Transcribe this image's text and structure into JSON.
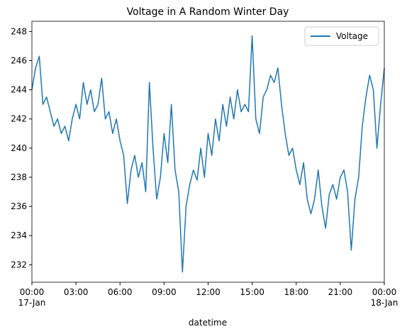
{
  "chart_data": {
    "type": "line",
    "title": "Voltage in A Random Winter Day",
    "xlabel": "datetime",
    "x": [
      "17-Jan 00:00",
      "17-Jan 00:15",
      "17-Jan 00:30",
      "17-Jan 00:45",
      "17-Jan 01:00",
      "17-Jan 01:15",
      "17-Jan 01:30",
      "17-Jan 01:45",
      "17-Jan 02:00",
      "17-Jan 02:15",
      "17-Jan 02:30",
      "17-Jan 02:45",
      "17-Jan 03:00",
      "17-Jan 03:15",
      "17-Jan 03:30",
      "17-Jan 03:45",
      "17-Jan 04:00",
      "17-Jan 04:15",
      "17-Jan 04:30",
      "17-Jan 04:45",
      "17-Jan 05:00",
      "17-Jan 05:15",
      "17-Jan 05:30",
      "17-Jan 05:45",
      "17-Jan 06:00",
      "17-Jan 06:15",
      "17-Jan 06:30",
      "17-Jan 06:45",
      "17-Jan 07:00",
      "17-Jan 07:15",
      "17-Jan 07:30",
      "17-Jan 07:45",
      "17-Jan 08:00",
      "17-Jan 08:15",
      "17-Jan 08:30",
      "17-Jan 08:45",
      "17-Jan 09:00",
      "17-Jan 09:15",
      "17-Jan 09:30",
      "17-Jan 09:45",
      "17-Jan 10:00",
      "17-Jan 10:15",
      "17-Jan 10:30",
      "17-Jan 10:45",
      "17-Jan 11:00",
      "17-Jan 11:15",
      "17-Jan 11:30",
      "17-Jan 11:45",
      "17-Jan 12:00",
      "17-Jan 12:15",
      "17-Jan 12:30",
      "17-Jan 12:45",
      "17-Jan 13:00",
      "17-Jan 13:15",
      "17-Jan 13:30",
      "17-Jan 13:45",
      "17-Jan 14:00",
      "17-Jan 14:15",
      "17-Jan 14:30",
      "17-Jan 14:45",
      "17-Jan 15:00",
      "17-Jan 15:15",
      "17-Jan 15:30",
      "17-Jan 15:45",
      "17-Jan 16:00",
      "17-Jan 16:15",
      "17-Jan 16:30",
      "17-Jan 16:45",
      "17-Jan 17:00",
      "17-Jan 17:15",
      "17-Jan 17:30",
      "17-Jan 17:45",
      "17-Jan 18:00",
      "17-Jan 18:15",
      "17-Jan 18:30",
      "17-Jan 18:45",
      "17-Jan 19:00",
      "17-Jan 19:15",
      "17-Jan 19:30",
      "17-Jan 19:45",
      "17-Jan 20:00",
      "17-Jan 20:15",
      "17-Jan 20:30",
      "17-Jan 20:45",
      "17-Jan 21:00",
      "17-Jan 21:15",
      "17-Jan 21:30",
      "17-Jan 21:45",
      "17-Jan 22:00",
      "17-Jan 22:15",
      "17-Jan 22:30",
      "17-Jan 22:45",
      "17-Jan 23:00",
      "17-Jan 23:15",
      "17-Jan 23:30",
      "17-Jan 23:45",
      "18-Jan 00:00"
    ],
    "series": [
      {
        "name": "Voltage",
        "color": "#1f77b4",
        "values": [
          244,
          245.5,
          246.3,
          243,
          243.5,
          242.5,
          241.5,
          242,
          241,
          241.5,
          240.5,
          242,
          243,
          242,
          244.5,
          243,
          244,
          242.5,
          243,
          244.8,
          242,
          242.5,
          241,
          242,
          240.5,
          239.5,
          236.2,
          238.5,
          239.5,
          238,
          239,
          237,
          244.5,
          240,
          236.5,
          238,
          241,
          239,
          243,
          238.5,
          237,
          231.5,
          236,
          237.5,
          238.5,
          237.8,
          240,
          238,
          241,
          239.5,
          242,
          240.5,
          243,
          241.5,
          243.5,
          242,
          244,
          242.5,
          243,
          242.5,
          247.7,
          242,
          241,
          243.5,
          244,
          245,
          244.5,
          245.5,
          243,
          241,
          239.5,
          240,
          238.5,
          237.5,
          239,
          236.5,
          235.5,
          236.5,
          238.5,
          236,
          234.5,
          236.8,
          237.5,
          236.5,
          238,
          238.5,
          237,
          233,
          236.5,
          238,
          241.5,
          243.5,
          245,
          244,
          240,
          243,
          245.5
        ]
      }
    ],
    "xlim": [
      "17-Jan 00:00",
      "18-Jan 00:00"
    ],
    "xticks": [
      {
        "value": "17-Jan 00:00",
        "label": "00:00\n17-Jan"
      },
      {
        "value": "17-Jan 03:00",
        "label": "03:00"
      },
      {
        "value": "17-Jan 06:00",
        "label": "06:00"
      },
      {
        "value": "17-Jan 09:00",
        "label": "09:00"
      },
      {
        "value": "17-Jan 12:00",
        "label": "12:00"
      },
      {
        "value": "17-Jan 15:00",
        "label": "15:00"
      },
      {
        "value": "17-Jan 18:00",
        "label": "18:00"
      },
      {
        "value": "17-Jan 21:00",
        "label": "21:00"
      },
      {
        "value": "18-Jan 00:00",
        "label": "00:00\n18-Jan"
      }
    ],
    "ylim": [
      230.8,
      248.7
    ],
    "yticks": [
      232,
      234,
      236,
      238,
      240,
      242,
      244,
      246,
      248
    ],
    "legend": "upper right",
    "grid": false
  }
}
